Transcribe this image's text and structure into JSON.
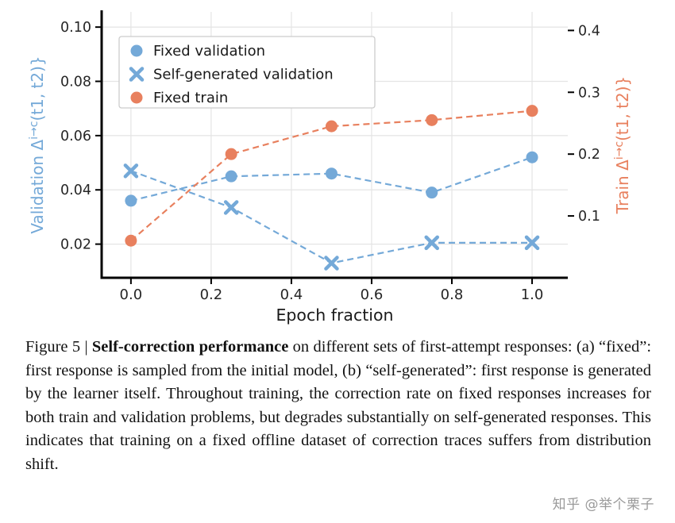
{
  "figure": {
    "caption": {
      "label": "Figure 5",
      "separator": "|",
      "bold": "Self-correction performance",
      "rest": " on different sets of first-attempt responses: (a) “fixed”: first response is sampled from the initial model, (b) “self-generated”: first response is generated by the learner itself. Throughout training, the correction rate on fixed responses increases for both train and validation problems, but degrades substantially on self-generated responses. This indicates that training on a fixed offline dataset of correction traces suffers from distribution shift."
    },
    "watermark": "知乎 @举个栗子"
  },
  "chart_data": {
    "type": "line",
    "x": [
      0.0,
      0.25,
      0.5,
      0.75,
      1.0
    ],
    "series": [
      {
        "name": "Fixed validation",
        "axis": "left",
        "marker": "circle",
        "color": "#74a9d8",
        "values": [
          0.036,
          0.045,
          0.046,
          0.039,
          0.052
        ]
      },
      {
        "name": "Self-generated validation",
        "axis": "left",
        "marker": "x",
        "color": "#74a9d8",
        "values": [
          0.047,
          0.0335,
          0.013,
          0.0205,
          0.0205
        ]
      },
      {
        "name": "Fixed train",
        "axis": "right",
        "marker": "circle",
        "color": "#e8805e",
        "values": [
          0.06,
          0.2,
          0.245,
          0.255,
          0.27
        ]
      }
    ],
    "xlabel": "Epoch fraction",
    "x_ticks": [
      "0.0",
      "0.2",
      "0.4",
      "0.6",
      "0.8",
      "1.0"
    ],
    "x_tick_values": [
      0.0,
      0.2,
      0.4,
      0.6,
      0.8,
      1.0
    ],
    "xlim": [
      -0.073,
      1.089
    ],
    "left_axis": {
      "label_prefix": "Validation Δ",
      "label_sup": "i→c",
      "label_suffix": "(t1, t2)}",
      "ticks": [
        "0.10",
        "0.08",
        "0.06",
        "0.04",
        "0.02"
      ],
      "tick_values": [
        0.1,
        0.08,
        0.06,
        0.04,
        0.02
      ],
      "lim": [
        0.0076,
        0.1056
      ],
      "color": "#74a9d8"
    },
    "right_axis": {
      "label_prefix": "Train Δ",
      "label_sup": "i→c",
      "label_suffix": "(t1, t2)}",
      "ticks": [
        "0.4",
        "0.3",
        "0.2",
        "0.1"
      ],
      "tick_values": [
        0.4,
        0.3,
        0.2,
        0.1
      ],
      "lim": [
        0.0,
        0.43
      ],
      "color": "#e8805e"
    },
    "legend": [
      "Fixed validation",
      "Self-generated validation",
      "Fixed train"
    ],
    "legend_position": "upper left",
    "line_style": "dashed",
    "grid": true
  }
}
